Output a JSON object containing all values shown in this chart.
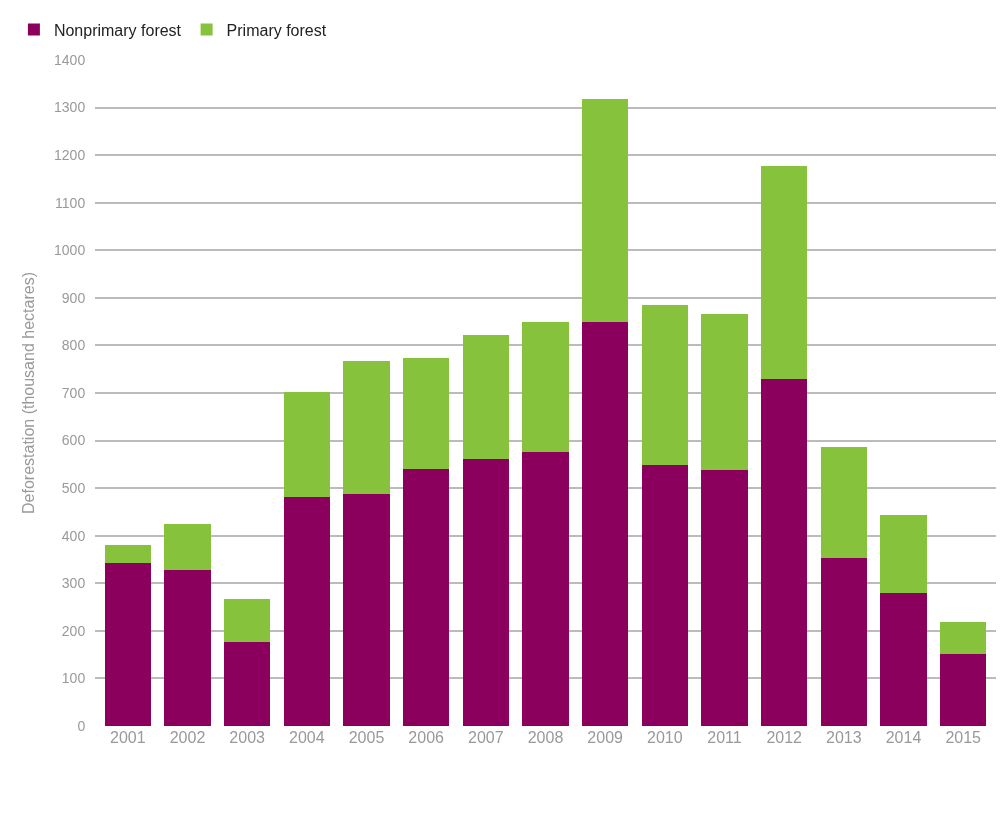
{
  "chart_data": {
    "type": "bar",
    "stacked": true,
    "ylabel": "Deforestation (thousand hectares)",
    "categories": [
      "2001",
      "2002",
      "2003",
      "2004",
      "2005",
      "2006",
      "2007",
      "2008",
      "2009",
      "2010",
      "2011",
      "2012",
      "2013",
      "2014",
      "2015"
    ],
    "series": [
      {
        "name": "Nonprimary forest",
        "color": "#8b005d",
        "values": [
          342,
          328,
          176,
          482,
          488,
          540,
          562,
          576,
          850,
          548,
          538,
          730,
          354,
          280,
          152
        ]
      },
      {
        "name": "Primary forest",
        "color": "#86c23c",
        "values": [
          38,
          96,
          92,
          220,
          280,
          234,
          260,
          274,
          468,
          338,
          328,
          448,
          232,
          164,
          66
        ]
      }
    ],
    "ylim": [
      0,
      1400
    ],
    "yticks": [
      0,
      100,
      200,
      300,
      400,
      500,
      600,
      700,
      800,
      900,
      1000,
      1100,
      1200,
      1300,
      1400
    ],
    "grid": "y",
    "legend": "top left"
  }
}
